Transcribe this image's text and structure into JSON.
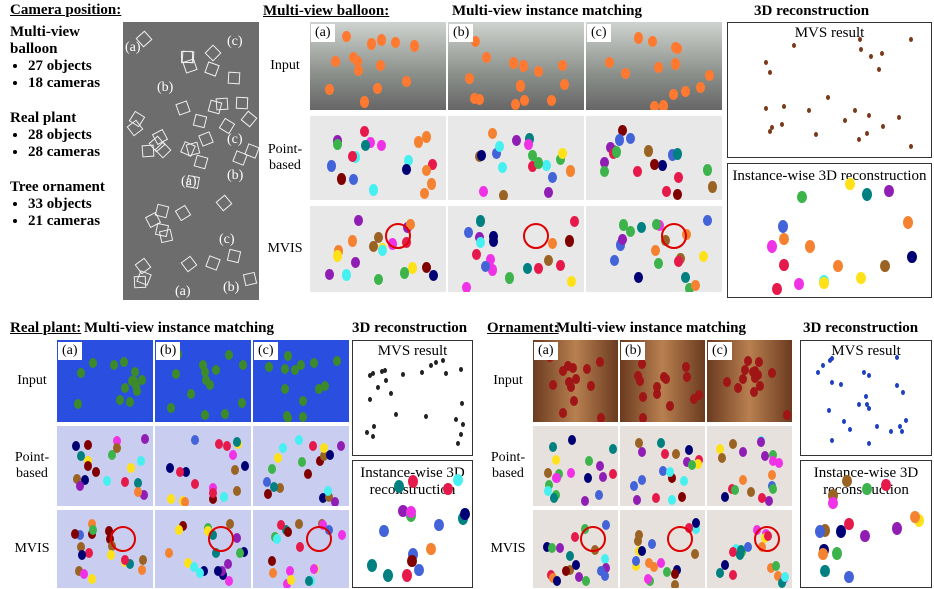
{
  "camera_position": {
    "title": "Camera position:",
    "datasets": [
      {
        "name": "Multi-view balloon",
        "objects": "27 objects",
        "cameras": "18 cameras"
      },
      {
        "name": "Real plant",
        "objects": "28 objects",
        "cameras": "28 cameras"
      },
      {
        "name": "Tree ornament",
        "objects": "33 objects",
        "cameras": "21 cameras"
      }
    ],
    "view_labels": [
      "(a)",
      "(b)",
      "(c)",
      "(a)",
      "(b)",
      "(c)",
      "(a)",
      "(b)",
      "(c)"
    ]
  },
  "panels": [
    {
      "title": "Multi-view balloon:",
      "subtitle": "Multi-view instance matching",
      "recon_title": "3D reconstruction",
      "columns": [
        "(a)",
        "(b)",
        "(c)"
      ],
      "rows": [
        "Input",
        "Point-based",
        "MVIS"
      ],
      "mvs": "MVS result",
      "instance": "Instance-wise 3D reconstruction"
    },
    {
      "title": "Real plant:",
      "subtitle": "Multi-view instance matching",
      "recon_title": "3D reconstruction",
      "columns": [
        "(a)",
        "(b)",
        "(c)"
      ],
      "rows": [
        "Input",
        "Point-based",
        "MVIS"
      ],
      "mvs": "MVS result",
      "instance": "Instance-wise 3D reconstruction"
    },
    {
      "title": "Ornament:",
      "subtitle": "Multi-view instance matching",
      "recon_title": "3D reconstruction",
      "columns": [
        "(a)",
        "(b)",
        "(c)"
      ],
      "rows": [
        "Input",
        "Point-based",
        "MVIS"
      ],
      "mvs": "MVS result",
      "instance": "Instance-wise 3D reconstruction"
    }
  ]
}
